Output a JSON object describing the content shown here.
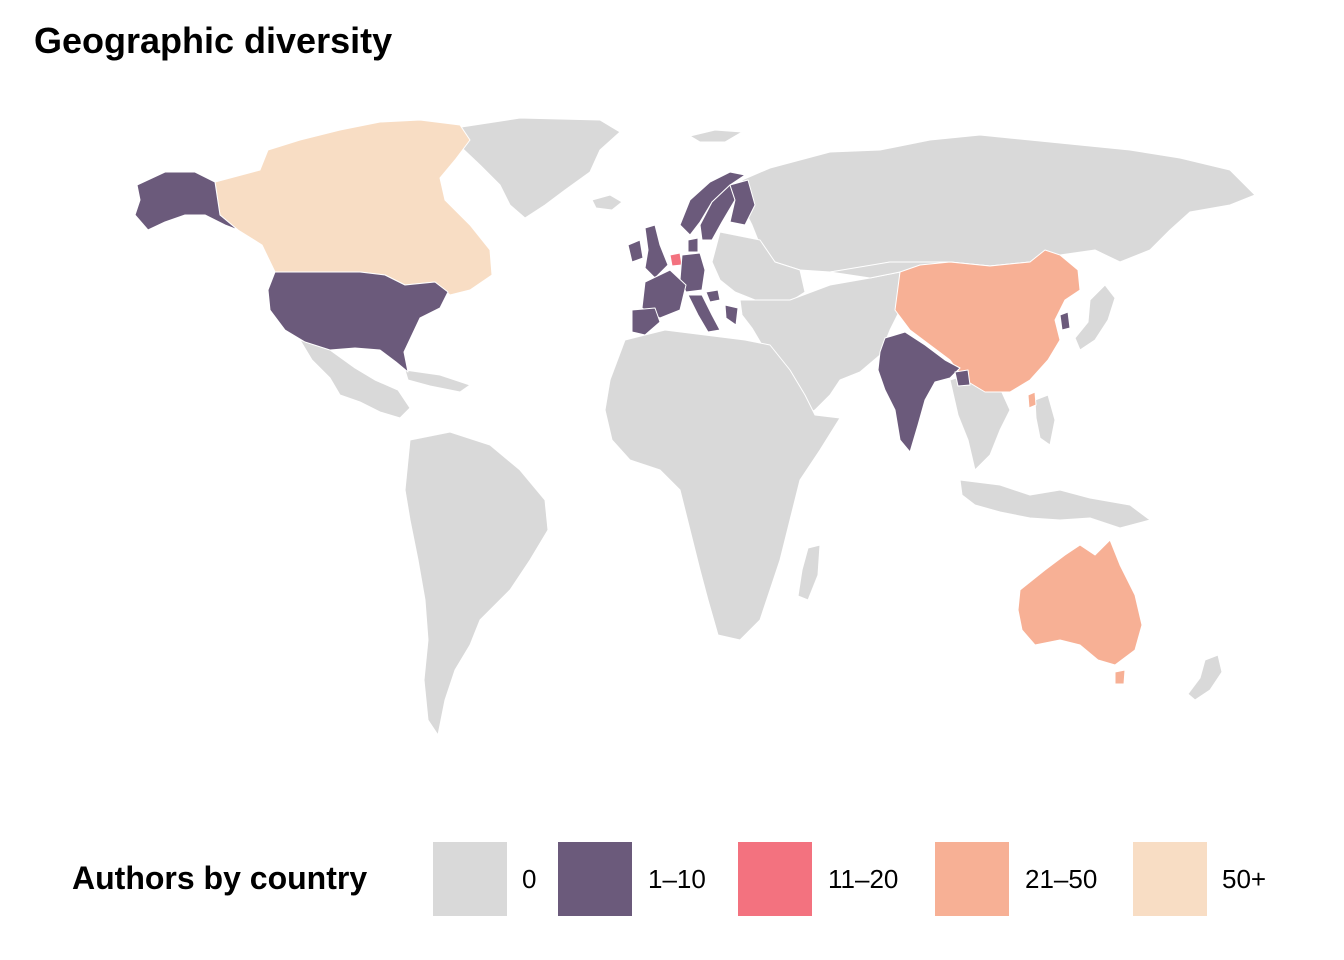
{
  "title": "Geographic diversity",
  "legend": {
    "title": "Authors by country",
    "items": [
      {
        "label": "0",
        "color": "#d9d9d9"
      },
      {
        "label": "1–10",
        "color": "#6b5a7b"
      },
      {
        "label": "11–20",
        "color": "#f3727f"
      },
      {
        "label": "21–50",
        "color": "#f7b095"
      },
      {
        "label": "50+",
        "color": "#f8ddc4"
      }
    ]
  },
  "map": {
    "projection": "world",
    "countries": [
      {
        "name": "Canada",
        "bin": "50+"
      },
      {
        "name": "United States",
        "bin": "1–10"
      },
      {
        "name": "Alaska (United States)",
        "bin": "1–10"
      },
      {
        "name": "China",
        "bin": "21–50"
      },
      {
        "name": "Australia",
        "bin": "21–50"
      },
      {
        "name": "India",
        "bin": "1–10"
      },
      {
        "name": "United Kingdom",
        "bin": "1–10"
      },
      {
        "name": "Ireland",
        "bin": "1–10"
      },
      {
        "name": "France",
        "bin": "1–10"
      },
      {
        "name": "Spain",
        "bin": "1–10"
      },
      {
        "name": "Portugal",
        "bin": "1–10"
      },
      {
        "name": "Germany",
        "bin": "1–10"
      },
      {
        "name": "Norway",
        "bin": "1–10"
      },
      {
        "name": "Sweden",
        "bin": "1–10"
      },
      {
        "name": "Finland",
        "bin": "1–10"
      },
      {
        "name": "Denmark",
        "bin": "1–10"
      },
      {
        "name": "Italy",
        "bin": "1–10"
      },
      {
        "name": "Greece",
        "bin": "1–10"
      },
      {
        "name": "Belgium",
        "bin": "1–10"
      },
      {
        "name": "Switzerland",
        "bin": "1–10"
      },
      {
        "name": "Austria",
        "bin": "1–10"
      },
      {
        "name": "Croatia",
        "bin": "1–10"
      },
      {
        "name": "Netherlands",
        "bin": "11–20"
      },
      {
        "name": "South Korea",
        "bin": "1–10"
      },
      {
        "name": "Bangladesh",
        "bin": "1–10"
      },
      {
        "name": "Taiwan",
        "bin": "21–50"
      },
      {
        "name": "Rest of world",
        "bin": "0"
      }
    ]
  }
}
